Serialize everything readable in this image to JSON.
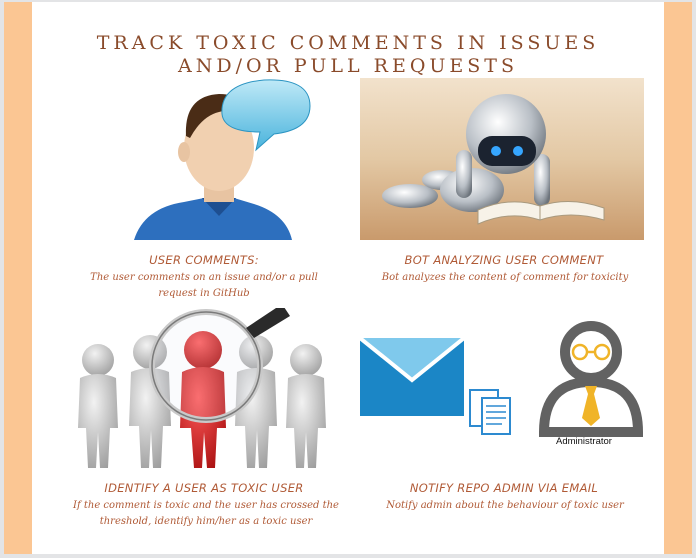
{
  "title": "Track toxic comments in issues and/or pull requests",
  "steps": [
    {
      "heading": "User comments:",
      "description": "The user comments on an issue and/or a pull request in GitHub",
      "image": "person-speech-bubble-icon"
    },
    {
      "heading": "Bot analyzing user comment",
      "description": "Bot analyzes the content of comment for toxicity",
      "image": "robot-reading-book-icon"
    },
    {
      "heading": "Identify a user as toxic user",
      "description": "If the comment is toxic and the user has crossed the threshold, identify him/her as a toxic user",
      "image": "magnifier-crowd-icon"
    },
    {
      "heading": "Notify repo admin via email",
      "description": "Notify admin about the behaviour of toxic user",
      "image": "email-admin-icon",
      "admin_label": "Administrator"
    }
  ],
  "colors": {
    "band": "#fbc693",
    "title": "#8a4b2b",
    "accent_text": "#b05a36",
    "highlight_person": "#d91c1c",
    "envelope": "#1b86c6"
  }
}
